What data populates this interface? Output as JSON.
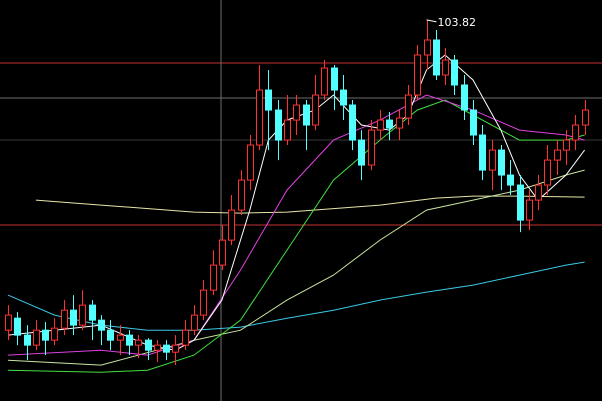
{
  "chart_data": {
    "type": "candlestick",
    "annotation": "103.82",
    "annotation_index": 45,
    "xlim": [
      -0.86,
      63.87
    ],
    "ylim": [
      56.2,
      106.3
    ],
    "up_color": "#ff3232",
    "down_color": "#54ffff",
    "ohlc": [
      [
        65.05,
        68.18,
        63.8,
        66.93
      ],
      [
        66.55,
        67.3,
        63.18,
        64.43
      ],
      [
        64.43,
        65.68,
        61.3,
        63.18
      ],
      [
        63.18,
        66.3,
        62.55,
        65.05
      ],
      [
        65.05,
        66.05,
        61.93,
        63.8
      ],
      [
        63.8,
        66.55,
        63.18,
        65.3
      ],
      [
        65.3,
        68.8,
        64.43,
        67.55
      ],
      [
        67.55,
        69.43,
        64.43,
        65.68
      ],
      [
        65.68,
        70.05,
        65.05,
        68.18
      ],
      [
        68.18,
        68.8,
        63.8,
        66.3
      ],
      [
        66.3,
        66.93,
        63.18,
        65.05
      ],
      [
        65.05,
        66.3,
        62.55,
        63.8
      ],
      [
        63.8,
        65.68,
        61.93,
        64.43
      ],
      [
        64.43,
        65.05,
        61.93,
        63.18
      ],
      [
        63.18,
        64.43,
        61.55,
        63.8
      ],
      [
        63.8,
        64.05,
        61.3,
        62.55
      ],
      [
        62.55,
        63.8,
        61.05,
        63.18
      ],
      [
        63.18,
        63.8,
        61.3,
        62.3
      ],
      [
        62.3,
        64.43,
        60.68,
        63.18
      ],
      [
        63.18,
        66.3,
        62.55,
        65.05
      ],
      [
        65.05,
        68.18,
        64.43,
        66.93
      ],
      [
        66.93,
        71.3,
        66.3,
        70.05
      ],
      [
        70.05,
        75.05,
        69.43,
        73.18
      ],
      [
        73.18,
        78.18,
        72.55,
        76.3
      ],
      [
        76.3,
        81.93,
        75.68,
        80.05
      ],
      [
        80.05,
        85.05,
        79.43,
        83.8
      ],
      [
        83.8,
        89.43,
        82.55,
        88.18
      ],
      [
        88.18,
        98.18,
        87.55,
        95.05
      ],
      [
        95.05,
        97.55,
        87.55,
        92.55
      ],
      [
        92.55,
        93.8,
        86.3,
        88.8
      ],
      [
        88.8,
        94.43,
        88.18,
        91.3
      ],
      [
        91.3,
        94.43,
        89.43,
        93.18
      ],
      [
        93.18,
        93.8,
        87.55,
        90.68
      ],
      [
        90.68,
        96.93,
        90.05,
        94.43
      ],
      [
        94.43,
        98.8,
        93.8,
        97.8
      ],
      [
        97.8,
        98.18,
        92.55,
        95.05
      ],
      [
        95.05,
        96.93,
        91.3,
        93.18
      ],
      [
        93.18,
        93.8,
        87.55,
        88.8
      ],
      [
        88.8,
        90.05,
        83.8,
        85.68
      ],
      [
        85.68,
        91.3,
        85.05,
        90.05
      ],
      [
        90.05,
        92.55,
        88.8,
        91.3
      ],
      [
        91.3,
        92.3,
        88.8,
        90.3
      ],
      [
        90.3,
        92.55,
        88.8,
        91.55
      ],
      [
        91.55,
        95.68,
        90.68,
        94.43
      ],
      [
        94.43,
        100.68,
        93.8,
        99.43
      ],
      [
        99.43,
        103.82,
        97.55,
        101.3
      ],
      [
        101.3,
        102.55,
        96.3,
        96.93
      ],
      [
        96.93,
        100.3,
        95.68,
        98.8
      ],
      [
        98.8,
        99.43,
        94.43,
        95.68
      ],
      [
        95.68,
        96.93,
        91.3,
        92.55
      ],
      [
        92.55,
        93.8,
        88.18,
        89.43
      ],
      [
        89.43,
        90.68,
        83.8,
        85.05
      ],
      [
        85.05,
        88.8,
        82.55,
        87.55
      ],
      [
        87.55,
        88.18,
        82.55,
        84.43
      ],
      [
        84.43,
        86.3,
        81.93,
        83.18
      ],
      [
        83.18,
        84.43,
        77.3,
        78.8
      ],
      [
        78.8,
        82.55,
        77.55,
        81.3
      ],
      [
        81.3,
        84.43,
        80.05,
        83.18
      ],
      [
        83.18,
        88.18,
        81.93,
        86.3
      ],
      [
        86.3,
        88.8,
        84.43,
        87.55
      ],
      [
        87.55,
        90.05,
        85.68,
        88.8
      ],
      [
        88.8,
        91.93,
        87.55,
        90.68
      ],
      [
        90.68,
        93.8,
        89.43,
        92.55
      ]
    ],
    "lines": [
      {
        "color": "#e6e6a8",
        "x": [
          3,
          10,
          20,
          25,
          30,
          40,
          46,
          50,
          55,
          62
        ],
        "values": [
          81.3,
          80.68,
          79.8,
          79.68,
          79.8,
          80.68,
          81.55,
          81.8,
          81.8,
          81.68
        ]
      },
      {
        "color": "#3cc8e6",
        "x": [
          0,
          5,
          10,
          15,
          20,
          25,
          30,
          35,
          40,
          45,
          50,
          55,
          60,
          62
        ],
        "values": [
          69.43,
          66.93,
          65.68,
          65.05,
          65.05,
          65.43,
          66.55,
          67.55,
          68.8,
          69.8,
          70.68,
          71.93,
          73.18,
          73.55
        ]
      },
      {
        "color": "#c8e6a0",
        "x": [
          0,
          10,
          20,
          25,
          30,
          35,
          40,
          45,
          50,
          55,
          60,
          62
        ],
        "values": [
          61.3,
          60.68,
          63.8,
          65.05,
          68.8,
          71.93,
          76.3,
          80.05,
          81.3,
          82.55,
          84.43,
          85.05
        ]
      },
      {
        "color": "#40e040",
        "x": [
          0,
          10,
          15,
          20,
          25,
          30,
          35,
          40,
          44,
          47,
          50,
          55,
          60,
          62
        ],
        "values": [
          60.05,
          59.8,
          60.05,
          61.93,
          66.3,
          75.05,
          83.8,
          88.8,
          92.55,
          93.8,
          91.93,
          88.8,
          88.8,
          89.43
        ]
      },
      {
        "color": "#e040e0",
        "x": [
          0,
          10,
          15,
          20,
          25,
          30,
          35,
          40,
          45,
          50,
          55,
          60,
          62
        ],
        "values": [
          61.93,
          62.55,
          61.93,
          63.8,
          72.55,
          82.55,
          88.8,
          91.3,
          94.43,
          92.55,
          90.05,
          89.43,
          88.8
        ]
      },
      {
        "color": "#ffffff",
        "x": [
          0,
          5,
          10,
          15,
          18,
          20,
          23,
          26,
          28,
          30,
          33,
          35,
          38,
          41,
          43,
          45,
          47,
          50,
          53,
          55,
          57,
          60,
          62
        ],
        "values": [
          64.43,
          65.05,
          65.68,
          63.18,
          62.55,
          63.8,
          68.8,
          80.05,
          88.8,
          91.3,
          92.55,
          94.43,
          90.68,
          90.05,
          91.93,
          97.55,
          99.43,
          96.3,
          90.05,
          84.43,
          81.3,
          84.43,
          87.55
        ]
      }
    ]
  }
}
